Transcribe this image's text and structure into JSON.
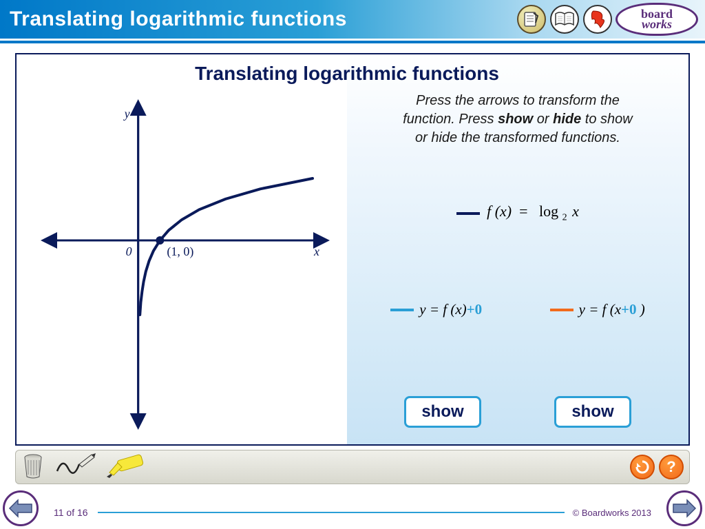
{
  "header": {
    "title": "Translating logarithmic functions",
    "logo_text": "board works"
  },
  "content": {
    "title": "Translating logarithmic functions",
    "instruction_line1": "Press the arrows to transform the",
    "instruction_line2_a": "function. Press ",
    "instruction_line2_b": "show",
    "instruction_line2_c": " or ",
    "instruction_line2_d": "hide",
    "instruction_line2_e": " to show",
    "instruction_line3": "or hide the transformed functions.",
    "legend_main": {
      "fx": "f (x)",
      "eq": "=",
      "log": "log",
      "base": "2",
      "arg": "x",
      "swatch_color": "#0a1a5a"
    },
    "translate_y": {
      "swatch_color": "#2a9fd6",
      "prefix": "y = f (x)",
      "offset": "+0",
      "offset_color": "#2a9fd6"
    },
    "translate_x": {
      "swatch_color": "#f26a1b",
      "prefix": "y = f (x",
      "offset": "+0",
      "suffix": " )",
      "offset_color": "#2a9fd6"
    },
    "show_button_1": "show",
    "show_button_2": "show"
  },
  "graph": {
    "type": "line",
    "axis_color": "#0a1a5a",
    "curve_color": "#0a1a5a",
    "curve_width": 4,
    "background": "#ffffff",
    "x_label": "x",
    "y_label": "y",
    "origin_label": "0",
    "point_label": "(1, 0)",
    "x_range": [
      -4,
      8
    ],
    "y_range": [
      -8,
      6
    ],
    "point": [
      1,
      0
    ],
    "curve_points": [
      [
        0.08,
        -3.6
      ],
      [
        0.12,
        -3.0
      ],
      [
        0.18,
        -2.47
      ],
      [
        0.25,
        -2.0
      ],
      [
        0.35,
        -1.51
      ],
      [
        0.5,
        -1.0
      ],
      [
        0.7,
        -0.51
      ],
      [
        1,
        0
      ],
      [
        1.4,
        0.49
      ],
      [
        2,
        1.0
      ],
      [
        2.8,
        1.49
      ],
      [
        4,
        2.0
      ],
      [
        5.6,
        2.49
      ],
      [
        8,
        3.0
      ]
    ],
    "axis_stroke_width": 3,
    "font_family": "Georgia",
    "label_font_size": 18
  },
  "footer": {
    "page": "11 of 16",
    "copyright": "© Boardworks 2013"
  }
}
